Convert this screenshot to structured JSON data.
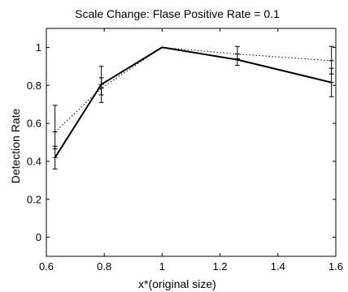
{
  "chart_data": {
    "type": "line",
    "title": "Scale Change: Flase Positive Rate = 0.1",
    "xlabel": "x*(original size)",
    "ylabel": "Detection Rate",
    "xlim": [
      0.6,
      1.6
    ],
    "ylim": [
      -0.1,
      1.1
    ],
    "xticks": [
      0.6,
      0.8,
      1.0,
      1.2,
      1.4,
      1.6
    ],
    "xtick_labels": [
      "0.6",
      "0.8",
      "1",
      "1.2",
      "1.4",
      "1.6"
    ],
    "yticks": [
      0,
      0.2,
      0.4,
      0.6,
      0.8,
      1.0
    ],
    "ytick_labels": [
      "0",
      "0.2",
      "0.4",
      "0.6",
      "0.8",
      "1"
    ],
    "grid": false,
    "series": [
      {
        "style": "solid",
        "x": [
          0.63,
          0.79,
          1.0,
          1.26,
          1.585
        ],
        "y": [
          0.42,
          0.805,
          1.0,
          0.935,
          0.815
        ],
        "err_low": [
          0.36,
          0.71,
          1.0,
          0.905,
          0.74
        ],
        "err_high": [
          0.48,
          0.9,
          1.0,
          0.965,
          0.89
        ]
      },
      {
        "style": "dotted",
        "x": [
          0.63,
          0.79,
          1.0,
          1.26,
          1.585
        ],
        "y": [
          0.555,
          0.785,
          1.0,
          0.965,
          0.93
        ],
        "err_low": [
          0.465,
          0.75,
          1.0,
          0.94,
          0.86
        ],
        "err_high": [
          0.695,
          0.84,
          1.0,
          1.005,
          1.005
        ]
      }
    ]
  }
}
